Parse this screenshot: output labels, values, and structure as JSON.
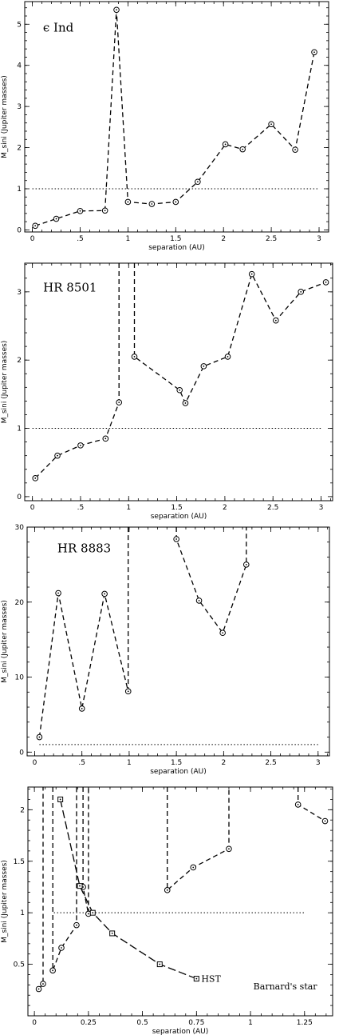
{
  "chart_data": [
    {
      "type": "line",
      "label": "ϵ Ind",
      "xlabel": "separation (AU)",
      "ylabel": "M_sini (Jupiter masses)",
      "xlim": [
        -0.08,
        3.1
      ],
      "ylim": [
        -0.05,
        5.55
      ],
      "xticks": [
        0,
        0.5,
        1,
        1.5,
        2,
        2.5,
        3
      ],
      "xtick_labels": [
        "0",
        ".5",
        "1",
        "1.5",
        "2",
        "2.5",
        "3"
      ],
      "yticks": [
        0,
        1,
        2,
        3,
        4,
        5
      ],
      "ytick_labels": [
        "0",
        "1",
        "2",
        "3",
        "4",
        "5"
      ],
      "threshold": 1,
      "series": [
        {
          "marker": "circle",
          "segments": [
            [
              [
                0.03,
                0.1
              ],
              [
                0.25,
                0.27
              ],
              [
                0.5,
                0.46
              ],
              [
                0.76,
                0.47
              ],
              [
                0.88,
                5.35
              ],
              [
                1.0,
                0.68
              ],
              [
                1.25,
                0.63
              ],
              [
                1.5,
                0.68
              ],
              [
                1.73,
                1.17
              ],
              [
                2.02,
                2.08
              ],
              [
                2.2,
                1.96
              ],
              [
                2.5,
                2.57
              ],
              [
                2.75,
                1.95
              ],
              [
                2.95,
                4.32
              ]
            ]
          ]
        }
      ]
    },
    {
      "type": "line",
      "label": "HR 8501",
      "xlabel": "separation (AU)",
      "ylabel": "M_sini (Jupiter masses)",
      "xlim": [
        -0.08,
        3.12
      ],
      "ylim": [
        -0.06,
        3.42
      ],
      "xticks": [
        0,
        0.5,
        1,
        1.5,
        2,
        2.5,
        3
      ],
      "xtick_labels": [
        "0",
        ".5",
        "1",
        "1.5",
        "2",
        "2.5",
        "3"
      ],
      "yticks": [
        0,
        1,
        2,
        3
      ],
      "ytick_labels": [
        "0",
        "1",
        "2",
        "3"
      ],
      "threshold": 1,
      "series": [
        {
          "marker": "circle",
          "segments": [
            [
              [
                0.03,
                0.27
              ],
              [
                0.26,
                0.6
              ],
              [
                0.5,
                0.75
              ],
              [
                0.76,
                0.85
              ],
              [
                0.9,
                1.38
              ],
              [
                0.9,
                3.42
              ]
            ],
            [
              [
                1.06,
                3.42
              ],
              [
                1.06,
                2.05
              ],
              [
                1.53,
                1.56
              ],
              [
                1.59,
                1.37
              ],
              [
                1.78,
                1.91
              ],
              [
                2.03,
                2.05
              ],
              [
                2.28,
                3.26
              ],
              [
                2.53,
                2.58
              ],
              [
                2.79,
                3.0
              ],
              [
                3.05,
                3.14
              ]
            ]
          ]
        }
      ]
    },
    {
      "type": "line",
      "label": "HR 8883",
      "xlabel": "separation (AU)",
      "ylabel": "M_sini (Jupiter masses)",
      "xlim": [
        -0.08,
        3.12
      ],
      "ylim": [
        -0.5,
        30
      ],
      "xticks": [
        0,
        0.5,
        1,
        1.5,
        2,
        2.5,
        3
      ],
      "xtick_labels": [
        "0",
        ".5",
        "1",
        "1.5",
        "2",
        "2.5",
        "3"
      ],
      "yticks": [
        0,
        10,
        20,
        30
      ],
      "ytick_labels": [
        "0",
        "10",
        "20",
        "30"
      ],
      "threshold": 1,
      "threshold_x": [
        0.05,
        3.0
      ],
      "series": [
        {
          "marker": "circle",
          "segments": [
            [
              [
                0.05,
                2.0
              ],
              [
                0.25,
                21.2
              ],
              [
                0.5,
                5.8
              ],
              [
                0.74,
                21.1
              ],
              [
                0.99,
                8.1
              ],
              [
                0.99,
                30
              ]
            ],
            [
              [
                1.5,
                30
              ],
              [
                1.5,
                28.4
              ],
              [
                1.74,
                20.2
              ],
              [
                1.99,
                15.9
              ],
              [
                2.24,
                25.0
              ],
              [
                2.24,
                30
              ]
            ]
          ]
        }
      ]
    },
    {
      "type": "line",
      "label": "Barnard's star",
      "xlabel": "separation (AU)",
      "ylabel": "M_sini (Jupiter masses)",
      "xlim": [
        -0.03,
        1.38
      ],
      "ylim": [
        0.0,
        2.22
      ],
      "xticks": [
        0,
        0.25,
        0.5,
        0.75,
        1,
        1.25
      ],
      "xtick_labels": [
        "0",
        "0.25",
        "0.5",
        "0.75",
        "1",
        "1.25"
      ],
      "yticks": [
        0.5,
        1,
        1.5,
        2
      ],
      "ytick_labels": [
        "0.5",
        "1",
        "1.5",
        "2"
      ],
      "threshold": 1,
      "threshold_x": [
        0.09,
        1.25
      ],
      "series": [
        {
          "marker": "circle",
          "segments": [
            [
              [
                0.02,
                0.26
              ],
              [
                0.04,
                0.31
              ],
              [
                0.04,
                2.22
              ]
            ],
            [
              [
                0.085,
                2.22
              ],
              [
                0.085,
                0.44
              ],
              [
                0.125,
                0.66
              ],
              [
                0.195,
                0.88
              ],
              [
                0.195,
                2.22
              ]
            ],
            [
              [
                0.225,
                2.22
              ],
              [
                0.225,
                1.25
              ],
              [
                0.25,
                0.99
              ],
              [
                0.25,
                2.22
              ]
            ],
            [
              [
                0.615,
                2.22
              ],
              [
                0.615,
                1.22
              ],
              [
                0.735,
                1.44
              ],
              [
                0.9,
                1.62
              ],
              [
                0.9,
                2.22
              ]
            ],
            [
              [
                1.22,
                2.22
              ],
              [
                1.22,
                2.05
              ],
              [
                1.345,
                1.89
              ]
            ]
          ]
        },
        {
          "name": "HST",
          "marker": "square",
          "segments": [
            [
              [
                0.12,
                2.1
              ],
              [
                0.21,
                1.26
              ],
              [
                0.27,
                1.0
              ],
              [
                0.36,
                0.8
              ],
              [
                0.58,
                0.5
              ],
              [
                0.75,
                0.36
              ]
            ]
          ]
        }
      ]
    }
  ]
}
